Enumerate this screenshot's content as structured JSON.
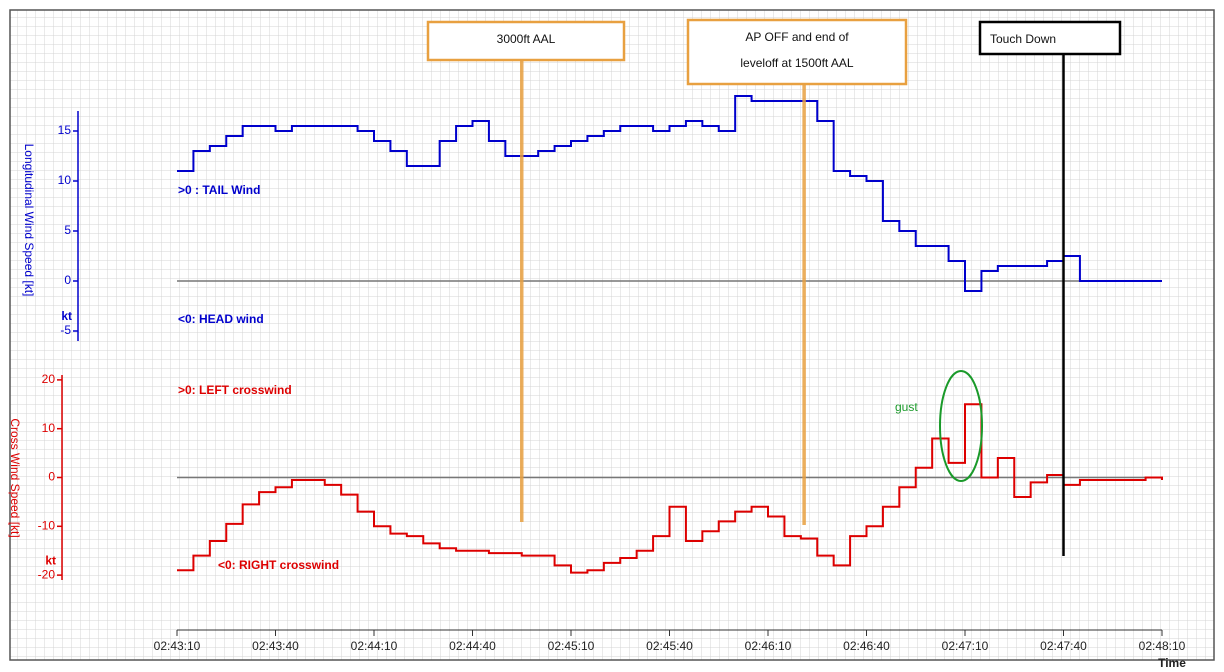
{
  "chart_data": [
    {
      "type": "line",
      "ylabel": "Longitudinal Wind Speed [kt]",
      "unit": "kt",
      "texts": [
        ">0 : TAIL Wind",
        "<0: HEAD wind"
      ],
      "ylim": [
        -6,
        17
      ],
      "yticks": [
        -5,
        0,
        5,
        10,
        15
      ],
      "xlim": [
        9790,
        10090
      ],
      "series": [
        {
          "name": "Longitudinal Wind Speed",
          "color": "#0000cc",
          "x": [
            9790,
            9795,
            9800,
            9805,
            9810,
            9815,
            9820,
            9825,
            9830,
            9835,
            9840,
            9845,
            9850,
            9855,
            9860,
            9865,
            9870,
            9875,
            9880,
            9885,
            9890,
            9895,
            9900,
            9905,
            9910,
            9915,
            9920,
            9925,
            9930,
            9935,
            9940,
            9945,
            9950,
            9955,
            9960,
            9965,
            9970,
            9975,
            9980,
            9985,
            9990,
            9995,
            10000,
            10005,
            10010,
            10015,
            10020,
            10025,
            10030,
            10035,
            10040,
            10045,
            10050,
            10055,
            10060,
            10065,
            10070,
            10075,
            10080,
            10085,
            10090
          ],
          "values": [
            11,
            13,
            13.5,
            14.5,
            15.5,
            15.5,
            15,
            15.5,
            15.5,
            15.5,
            15.5,
            15,
            14,
            13,
            11.5,
            11.5,
            14,
            15.5,
            16,
            14,
            12.5,
            12.5,
            13,
            13.5,
            14,
            14.5,
            15,
            15.5,
            15.5,
            15,
            15.5,
            16,
            15.5,
            15,
            18.5,
            18,
            18,
            18,
            18,
            16,
            11,
            10.5,
            10,
            6,
            5,
            3.5,
            3.5,
            2,
            -1,
            1,
            1.5,
            1.5,
            1.5,
            2,
            2.5,
            0,
            0,
            0,
            0,
            0,
            0
          ]
        }
      ]
    },
    {
      "type": "line",
      "ylabel": "Cross Wind Speed [kt]",
      "unit": "kt",
      "texts": [
        ">0: LEFT crosswind",
        "<0: RIGHT crosswind",
        "gust"
      ],
      "ylim": [
        -21,
        21
      ],
      "yticks": [
        -20,
        -10,
        0,
        10,
        20
      ],
      "xlim": [
        9790,
        10090
      ],
      "xlabel": "Time",
      "xticks": [
        {
          "value": 9790,
          "label": "02:43:10"
        },
        {
          "value": 9820,
          "label": "02:43:40"
        },
        {
          "value": 9850,
          "label": "02:44:10"
        },
        {
          "value": 9880,
          "label": "02:44:40"
        },
        {
          "value": 9910,
          "label": "02:45:10"
        },
        {
          "value": 9940,
          "label": "02:45:40"
        },
        {
          "value": 9970,
          "label": "02:46:10"
        },
        {
          "value": 10000,
          "label": "02:46:40"
        },
        {
          "value": 10030,
          "label": "02:47:10"
        },
        {
          "value": 10060,
          "label": "02:47:40"
        },
        {
          "value": 10090,
          "label": "02:48:10"
        }
      ],
      "series": [
        {
          "name": "Cross Wind Speed",
          "color": "#dd0000",
          "x": [
            9790,
            9795,
            9800,
            9805,
            9810,
            9815,
            9820,
            9825,
            9830,
            9835,
            9840,
            9845,
            9850,
            9855,
            9860,
            9865,
            9870,
            9875,
            9880,
            9885,
            9890,
            9895,
            9900,
            9905,
            9910,
            9915,
            9920,
            9925,
            9930,
            9935,
            9940,
            9945,
            9950,
            9955,
            9960,
            9965,
            9970,
            9975,
            9980,
            9985,
            9990,
            9995,
            10000,
            10005,
            10010,
            10015,
            10020,
            10025,
            10030,
            10035,
            10040,
            10045,
            10050,
            10055,
            10060,
            10065,
            10070,
            10075,
            10080,
            10085,
            10090
          ],
          "values": [
            -19,
            -16,
            -13,
            -9.5,
            -5.5,
            -3,
            -2,
            -0.5,
            -0.5,
            -1.5,
            -3.5,
            -7,
            -10,
            -11.5,
            -12,
            -13.5,
            -14.5,
            -15,
            -15,
            -15.5,
            -15.5,
            -16,
            -16,
            -18,
            -19.5,
            -19,
            -17.5,
            -16.5,
            -15,
            -12,
            -6,
            -13,
            -11,
            -9,
            -7,
            -6,
            -8,
            -12,
            -12.5,
            -16,
            -18,
            -12,
            -10,
            -6,
            -2,
            2,
            8,
            3,
            15,
            0,
            4,
            -4,
            -1,
            0.5,
            -1.5,
            -0.5,
            -0.5,
            -0.5,
            -0.5,
            0,
            -0.5
          ]
        }
      ]
    }
  ],
  "annotations": [
    {
      "lines": [
        "3000ft AAL"
      ],
      "x": 9895,
      "color": "#e8a040"
    },
    {
      "lines": [
        "AP OFF and end of",
        "leveloff at 1500ft AAL"
      ],
      "x": 9981,
      "color": "#e8a040"
    },
    {
      "lines": [
        "Touch Down"
      ],
      "x": 10060,
      "color": "#000000"
    }
  ]
}
